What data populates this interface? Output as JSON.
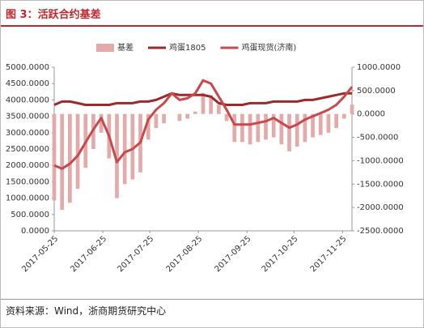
{
  "header": {
    "title": "图 3：活跃合约基差"
  },
  "footer": {
    "source": "资料来源：Wind，浙商期货研究中心"
  },
  "chart_data": {
    "type": "bar-line",
    "x": [
      "2017-05-25",
      "2017-05-30",
      "2017-06-04",
      "2017-06-09",
      "2017-06-14",
      "2017-06-19",
      "2017-06-24",
      "2017-06-29",
      "2017-07-04",
      "2017-07-09",
      "2017-07-14",
      "2017-07-19",
      "2017-07-24",
      "2017-07-29",
      "2017-08-03",
      "2017-08-08",
      "2017-08-13",
      "2017-08-18",
      "2017-08-23",
      "2017-08-28",
      "2017-09-02",
      "2017-09-07",
      "2017-09-12",
      "2017-09-17",
      "2017-09-22",
      "2017-09-27",
      "2017-10-02",
      "2017-10-07",
      "2017-10-12",
      "2017-10-17",
      "2017-10-22",
      "2017-10-27",
      "2017-11-01",
      "2017-11-06",
      "2017-11-11",
      "2017-11-16",
      "2017-11-21",
      "2017-11-26",
      "2017-12-01"
    ],
    "xlim": [
      "2017-05-25",
      "2017-12-01"
    ],
    "xticks": [
      "2017-05-25",
      "2017-06-25",
      "2017-07-25",
      "2017-08-25",
      "2017-09-25",
      "2017-10-25",
      "2017-11-25"
    ],
    "series": [
      {
        "name": "基差",
        "color": "#e3aaa9",
        "kind": "bar",
        "axis": "y2",
        "values": [
          -1850,
          -2050,
          -1900,
          -1600,
          -1150,
          -750,
          -400,
          -950,
          -1800,
          -1500,
          -1400,
          -1250,
          -550,
          -300,
          -200,
          0,
          -150,
          -100,
          50,
          450,
          400,
          200,
          -150,
          -600,
          -600,
          -650,
          -600,
          -550,
          -500,
          -650,
          -800,
          -700,
          -600,
          -500,
          -450,
          -400,
          -300,
          -100,
          200
        ]
      },
      {
        "name": "鸡蛋1805",
        "color": "#9b2a2d",
        "kind": "line",
        "values": [
          3850,
          3950,
          3950,
          3900,
          3850,
          3850,
          3850,
          3850,
          3900,
          3900,
          3900,
          3950,
          3950,
          4000,
          4100,
          4200,
          4150,
          4150,
          4150,
          4150,
          4100,
          3900,
          3850,
          3850,
          3850,
          3900,
          3900,
          3900,
          3950,
          3950,
          3950,
          3950,
          4000,
          4000,
          4050,
          4100,
          4150,
          4200,
          4200
        ]
      },
      {
        "name": "鸡蛋现货(济南)",
        "color": "#c9484b",
        "kind": "line",
        "values": [
          2000,
          1900,
          2050,
          2300,
          2700,
          3100,
          3450,
          2900,
          2100,
          2400,
          2500,
          2700,
          3400,
          3700,
          3900,
          4200,
          4000,
          4050,
          4200,
          4600,
          4500,
          4100,
          3700,
          3250,
          3250,
          3250,
          3300,
          3350,
          3450,
          3300,
          3150,
          3250,
          3400,
          3500,
          3600,
          3700,
          3850,
          4100,
          4400
        ]
      }
    ],
    "ylim": [
      0,
      5000
    ],
    "yticks": [
      {
        "value": 0,
        "label": "0.0000"
      },
      {
        "value": 500,
        "label": "500.0000"
      },
      {
        "value": 1000,
        "label": "1000.0000"
      },
      {
        "value": 1500,
        "label": "1500.0000"
      },
      {
        "value": 2000,
        "label": "2000.0000"
      },
      {
        "value": 2500,
        "label": "2500.0000"
      },
      {
        "value": 3000,
        "label": "3000.0000"
      },
      {
        "value": 3500,
        "label": "3500.0000"
      },
      {
        "value": 4000,
        "label": "4000.0000"
      },
      {
        "value": 4500,
        "label": "4500.0000"
      },
      {
        "value": 5000,
        "label": "5000.0000"
      }
    ],
    "y2lim": [
      -2500,
      1000
    ],
    "y2ticks": [
      {
        "value": -2500,
        "label": "-2500.0000"
      },
      {
        "value": -2000,
        "label": "-2000.0000"
      },
      {
        "value": -1500,
        "label": "-1500.0000"
      },
      {
        "value": -1000,
        "label": "-1000.0000"
      },
      {
        "value": -500,
        "label": "-500.0000"
      },
      {
        "value": 0,
        "label": "0.0000"
      },
      {
        "value": 500,
        "label": "500.0000"
      },
      {
        "value": 1000,
        "label": "1000.0000"
      }
    ],
    "legend": "top"
  }
}
